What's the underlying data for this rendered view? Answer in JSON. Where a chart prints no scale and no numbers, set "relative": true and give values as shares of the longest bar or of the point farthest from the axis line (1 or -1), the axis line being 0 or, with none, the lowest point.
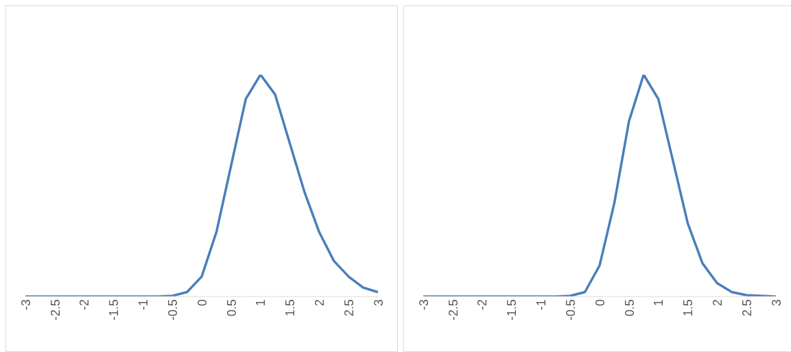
{
  "chart_data": [
    {
      "type": "line",
      "relative": true,
      "marker": "none",
      "color": "#4a7ebb",
      "xlim": [
        -3,
        3
      ],
      "xticks": [
        -3,
        -2.5,
        -2,
        -1.5,
        -1,
        -0.5,
        0,
        0.5,
        1,
        1.5,
        2,
        2.5,
        3
      ],
      "x": [
        -3,
        -2.75,
        -2.5,
        -2.25,
        -2,
        -1.75,
        -1.5,
        -1.25,
        -1,
        -0.75,
        -0.5,
        -0.25,
        0,
        0.25,
        0.5,
        0.75,
        1,
        1.25,
        1.5,
        1.75,
        2,
        2.25,
        2.5,
        2.75,
        3
      ],
      "values": [
        0,
        0,
        0,
        0,
        0,
        0,
        0,
        0,
        0,
        0,
        0.003,
        0.02,
        0.09,
        0.29,
        0.59,
        0.89,
        1,
        0.91,
        0.69,
        0.47,
        0.29,
        0.16,
        0.09,
        0.04,
        0.02
      ]
    },
    {
      "type": "line",
      "relative": true,
      "marker": "none",
      "color": "#4a7ebb",
      "xlim": [
        -3,
        3
      ],
      "xticks": [
        -3,
        -2.5,
        -2,
        -1.5,
        -1,
        -0.5,
        0,
        0.5,
        1,
        1.5,
        2,
        2.5,
        3
      ],
      "x": [
        -3,
        -2.75,
        -2.5,
        -2.25,
        -2,
        -1.75,
        -1.5,
        -1.25,
        -1,
        -0.75,
        -0.5,
        -0.25,
        0,
        0.25,
        0.5,
        0.75,
        1,
        1.25,
        1.5,
        1.75,
        2,
        2.25,
        2.5,
        2.75,
        3
      ],
      "values": [
        0,
        0,
        0,
        0,
        0,
        0,
        0,
        0,
        0,
        0,
        0.003,
        0.02,
        0.14,
        0.42,
        0.79,
        1,
        0.89,
        0.61,
        0.33,
        0.15,
        0.06,
        0.02,
        0.006,
        0.003,
        0
      ]
    }
  ]
}
